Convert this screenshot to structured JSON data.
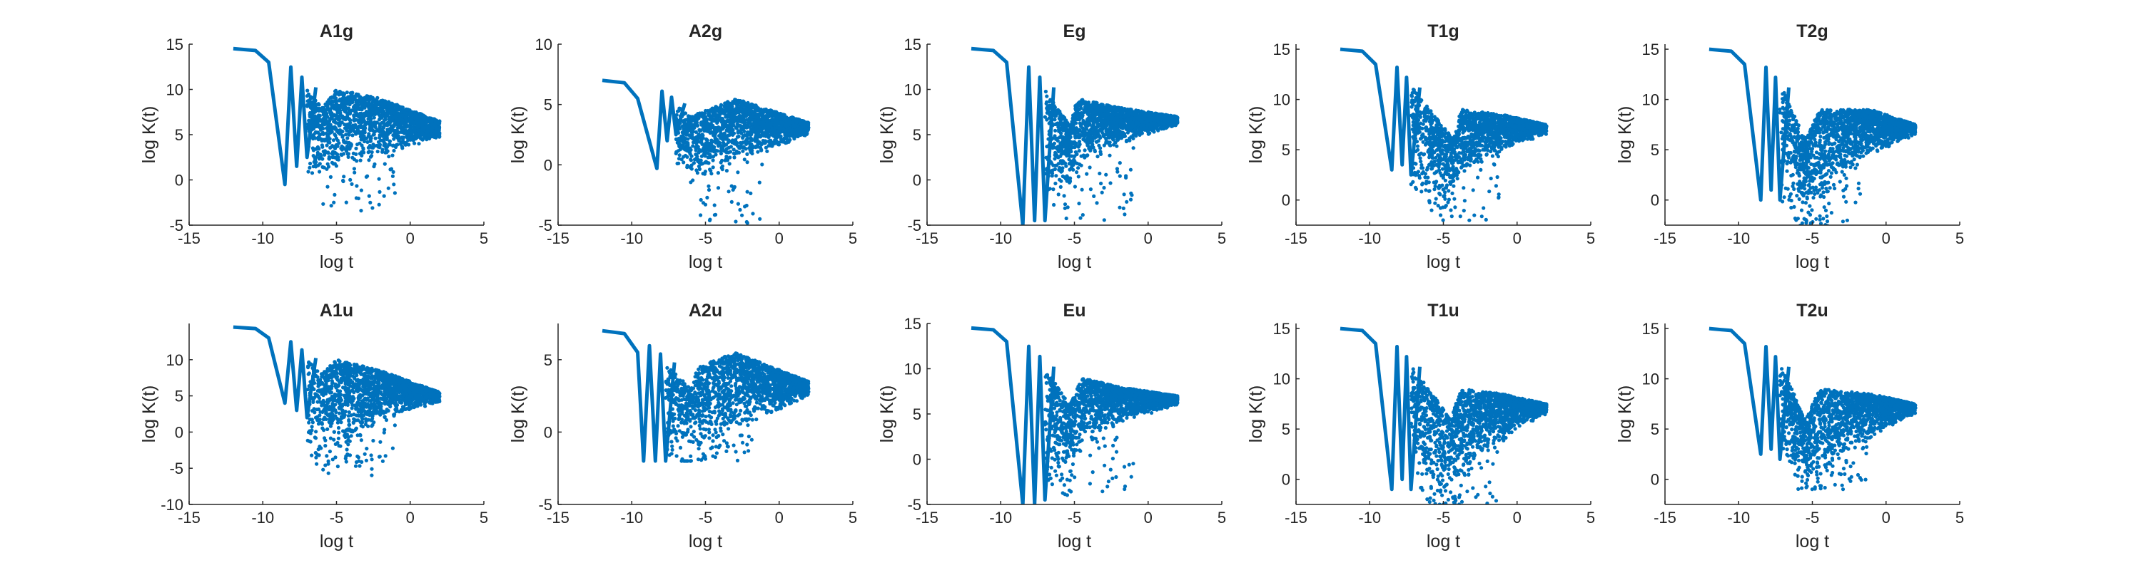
{
  "colors": {
    "series": "#0072BD",
    "axis": "#262626",
    "background": "#ffffff"
  },
  "chart_data": [
    {
      "title": "A1g",
      "type": "scatter",
      "xlabel": "log t",
      "ylabel": "log K(t)",
      "xlim": [
        -15,
        5
      ],
      "ylim": [
        -5,
        15
      ],
      "xticks": [
        -15,
        -10,
        -5,
        0,
        5
      ],
      "yticks": [
        -5,
        0,
        5,
        10,
        15
      ],
      "grid": false,
      "plateau": 14.5,
      "dips": [
        [
          -8.5,
          -0.5
        ],
        [
          -7.7,
          1.5
        ],
        [
          -7.0,
          2.5
        ]
      ],
      "envelope": [
        [
          -7,
          10
        ],
        [
          -6,
          8
        ],
        [
          -5,
          10
        ],
        [
          -2,
          9
        ],
        [
          2,
          6.5
        ]
      ],
      "floor": [
        [
          -7,
          0
        ],
        [
          -5,
          0.5
        ],
        [
          -3,
          2
        ],
        [
          0,
          3.5
        ],
        [
          2,
          4.5
        ]
      ],
      "outliers": [
        -6,
        -3.5
      ]
    },
    {
      "title": "A2g",
      "type": "scatter",
      "xlabel": "log t",
      "ylabel": "log K(t)",
      "xlim": [
        -15,
        5
      ],
      "ylim": [
        -5,
        10
      ],
      "xticks": [
        -15,
        -10,
        -5,
        0,
        5
      ],
      "yticks": [
        -5,
        0,
        5,
        10
      ],
      "grid": false,
      "plateau": 7,
      "dips": [
        [
          -8.3,
          -0.3
        ],
        [
          -7.6,
          2
        ],
        [
          -7.0,
          2.5
        ]
      ],
      "envelope": [
        [
          -7,
          5
        ],
        [
          -6,
          4
        ],
        [
          -5,
          4.5
        ],
        [
          -3,
          5.5
        ],
        [
          2,
          3.5
        ]
      ],
      "floor": [
        [
          -6.5,
          -1
        ],
        [
          -5,
          -1.5
        ],
        [
          -3,
          0
        ],
        [
          0,
          1.5
        ],
        [
          2,
          2.5
        ]
      ],
      "outliers": [
        -5.5,
        -5.2
      ]
    },
    {
      "title": "Eg",
      "type": "scatter",
      "xlabel": "log t",
      "ylabel": "log K(t)",
      "xlim": [
        -15,
        5
      ],
      "ylim": [
        -5,
        15
      ],
      "xticks": [
        -15,
        -10,
        -5,
        0,
        5
      ],
      "yticks": [
        -5,
        0,
        5,
        10,
        15
      ],
      "grid": false,
      "plateau": 14.5,
      "dips": [
        [
          -8.5,
          -5
        ],
        [
          -7.7,
          -4.5
        ],
        [
          -7.0,
          -4.5
        ]
      ],
      "envelope": [
        [
          -7,
          10
        ],
        [
          -5.3,
          6
        ],
        [
          -4.8,
          9
        ],
        [
          -2,
          8
        ],
        [
          2,
          7
        ]
      ],
      "floor": [
        [
          -7,
          -4
        ],
        [
          -5,
          0
        ],
        [
          -3,
          3
        ],
        [
          0,
          5
        ],
        [
          2,
          6
        ]
      ],
      "outliers": [
        -6.5,
        -4.5
      ]
    },
    {
      "title": "T1g",
      "type": "scatter",
      "xlabel": "log t",
      "ylabel": "log K(t)",
      "xlim": [
        -15,
        5
      ],
      "ylim": [
        -2.5,
        15.5
      ],
      "xticks": [
        -15,
        -10,
        -5,
        0,
        5
      ],
      "yticks": [
        0,
        5,
        10,
        15
      ],
      "grid": false,
      "plateau": 15,
      "dips": [
        [
          -8.5,
          3
        ],
        [
          -7.8,
          3.5
        ],
        [
          -7.2,
          2.5
        ]
      ],
      "envelope": [
        [
          -7,
          11
        ],
        [
          -4.3,
          6
        ],
        [
          -3.8,
          9
        ],
        [
          -1,
          8.5
        ],
        [
          2,
          7.5
        ]
      ],
      "floor": [
        [
          -7,
          1
        ],
        [
          -5,
          -0.5
        ],
        [
          -3,
          3
        ],
        [
          0,
          5.5
        ],
        [
          2,
          6.5
        ]
      ],
      "outliers": [
        -4.5,
        -2.2
      ]
    },
    {
      "title": "T2g",
      "type": "scatter",
      "xlabel": "log t",
      "ylabel": "log K(t)",
      "xlim": [
        -15,
        5
      ],
      "ylim": [
        -2.5,
        15.5
      ],
      "xticks": [
        -15,
        -10,
        -5,
        0,
        5
      ],
      "yticks": [
        0,
        5,
        10,
        15
      ],
      "grid": false,
      "plateau": 15,
      "dips": [
        [
          -8.5,
          0
        ],
        [
          -7.8,
          1
        ],
        [
          -7.2,
          0
        ]
      ],
      "envelope": [
        [
          -7,
          11
        ],
        [
          -5.5,
          6
        ],
        [
          -4.5,
          9
        ],
        [
          -1,
          9
        ],
        [
          2,
          7.5
        ]
      ],
      "floor": [
        [
          -7,
          -1
        ],
        [
          -5,
          -2
        ],
        [
          -3,
          2
        ],
        [
          0,
          5
        ],
        [
          2,
          6.5
        ]
      ],
      "outliers": [
        -5.2,
        -2.7
      ]
    },
    {
      "title": "A1u",
      "type": "scatter",
      "xlabel": "log t",
      "ylabel": "log K(t)",
      "xlim": [
        -15,
        5
      ],
      "ylim": [
        -10,
        15
      ],
      "xticks": [
        -15,
        -10,
        -5,
        0,
        5
      ],
      "yticks": [
        -10,
        -5,
        0,
        5,
        10
      ],
      "grid": false,
      "plateau": 14.5,
      "dips": [
        [
          -8.5,
          4
        ],
        [
          -7.7,
          3
        ],
        [
          -7.0,
          2
        ]
      ],
      "envelope": [
        [
          -7,
          10
        ],
        [
          -6,
          8
        ],
        [
          -5,
          10
        ],
        [
          -2,
          8.5
        ],
        [
          2,
          5.5
        ]
      ],
      "floor": [
        [
          -6.5,
          -5
        ],
        [
          -5,
          -3
        ],
        [
          -3,
          0
        ],
        [
          0,
          3
        ],
        [
          2,
          4
        ]
      ],
      "outliers": [
        -5.8,
        -6
      ]
    },
    {
      "title": "A2u",
      "type": "scatter",
      "xlabel": "log t",
      "ylabel": "log K(t)",
      "xlim": [
        -15,
        5
      ],
      "ylim": [
        -5,
        7.5
      ],
      "xticks": [
        -15,
        -10,
        -5,
        0,
        5
      ],
      "yticks": [
        -5,
        0,
        5
      ],
      "grid": false,
      "plateau": 7,
      "dips": [
        [
          -9.2,
          -2
        ],
        [
          -8.4,
          -2
        ],
        [
          -7.7,
          -2
        ]
      ],
      "envelope": [
        [
          -8,
          5
        ],
        [
          -6,
          3
        ],
        [
          -5.5,
          4.5
        ],
        [
          -3,
          5.5
        ],
        [
          2,
          3.5
        ]
      ],
      "floor": [
        [
          -8,
          -2
        ],
        [
          -6,
          -2
        ],
        [
          -4,
          -0.5
        ],
        [
          0,
          1.5
        ],
        [
          2,
          2.5
        ]
      ],
      "outliers": [
        -5.5,
        -2
      ]
    },
    {
      "title": "Eu",
      "type": "scatter",
      "xlabel": "log t",
      "ylabel": "log K(t)",
      "xlim": [
        -15,
        5
      ],
      "ylim": [
        -5,
        15
      ],
      "xticks": [
        -15,
        -10,
        -5,
        0,
        5
      ],
      "yticks": [
        -5,
        0,
        5,
        10,
        15
      ],
      "grid": false,
      "plateau": 14.5,
      "dips": [
        [
          -8.5,
          -5
        ],
        [
          -7.7,
          -5
        ],
        [
          -7.0,
          -4.5
        ]
      ],
      "envelope": [
        [
          -7,
          10
        ],
        [
          -5.3,
          6
        ],
        [
          -4.5,
          9
        ],
        [
          -2,
          8
        ],
        [
          2,
          7
        ]
      ],
      "floor": [
        [
          -7,
          -4.5
        ],
        [
          -5,
          0
        ],
        [
          -3,
          3
        ],
        [
          0,
          5
        ],
        [
          2,
          6
        ]
      ],
      "outliers": [
        -6,
        -4
      ]
    },
    {
      "title": "T1u",
      "type": "scatter",
      "xlabel": "log t",
      "ylabel": "log K(t)",
      "xlim": [
        -15,
        5
      ],
      "ylim": [
        -2.5,
        15.5
      ],
      "xticks": [
        -15,
        -10,
        -5,
        0,
        5
      ],
      "yticks": [
        0,
        5,
        10,
        15
      ],
      "grid": false,
      "plateau": 15,
      "dips": [
        [
          -8.5,
          -1
        ],
        [
          -7.8,
          0
        ],
        [
          -7.2,
          -1
        ]
      ],
      "envelope": [
        [
          -7,
          11
        ],
        [
          -4.5,
          6
        ],
        [
          -3.8,
          9
        ],
        [
          -1,
          8.5
        ],
        [
          2,
          7.5
        ]
      ],
      "floor": [
        [
          -7,
          -1
        ],
        [
          -5,
          -2.5
        ],
        [
          -3,
          1
        ],
        [
          0,
          5
        ],
        [
          2,
          6.5
        ]
      ],
      "outliers": [
        -4.5,
        -2.5
      ]
    },
    {
      "title": "T2u",
      "type": "scatter",
      "xlabel": "log t",
      "ylabel": "log K(t)",
      "xlim": [
        -15,
        5
      ],
      "ylim": [
        -2.5,
        15.5
      ],
      "xticks": [
        -15,
        -10,
        -5,
        0,
        5
      ],
      "yticks": [
        0,
        5,
        10,
        15
      ],
      "grid": false,
      "plateau": 15,
      "dips": [
        [
          -8.5,
          2.5
        ],
        [
          -7.8,
          3
        ],
        [
          -7.2,
          2
        ]
      ],
      "envelope": [
        [
          -7,
          11
        ],
        [
          -5.5,
          6
        ],
        [
          -4.5,
          9
        ],
        [
          -1,
          8.5
        ],
        [
          2,
          7.5
        ]
      ],
      "floor": [
        [
          -7,
          2
        ],
        [
          -5,
          -1
        ],
        [
          -3,
          2
        ],
        [
          0,
          5
        ],
        [
          2,
          6.5
        ]
      ],
      "outliers": [
        -5,
        -1
      ]
    }
  ]
}
